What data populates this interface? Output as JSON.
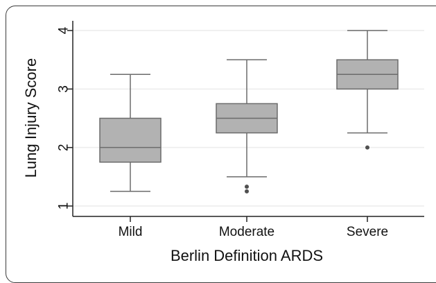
{
  "chart_data": {
    "type": "box",
    "xlabel": "Berlin Definition ARDS",
    "ylabel": "Lung Injury Score",
    "ylim": [
      0.95,
      4.2
    ],
    "yticks": [
      "1",
      "2",
      "3",
      "4"
    ],
    "categories": [
      "Mild",
      "Moderate",
      "Severe"
    ],
    "boxes": [
      {
        "category": "Mild",
        "whisker_low": 1.25,
        "q1": 1.75,
        "median": 2.0,
        "q3": 2.5,
        "whisker_high": 3.25,
        "outliers": []
      },
      {
        "category": "Moderate",
        "whisker_low": 1.5,
        "q1": 2.25,
        "median": 2.5,
        "q3": 2.75,
        "whisker_high": 3.5,
        "outliers": [
          1.33,
          1.25
        ]
      },
      {
        "category": "Severe",
        "whisker_low": 2.25,
        "q1": 3.0,
        "median": 3.25,
        "q3": 3.5,
        "whisker_high": 4.0,
        "outliers": [
          2.0
        ]
      }
    ],
    "grid": true,
    "colors": {
      "box_fill": "#b2b2b2",
      "box_stroke": "#6b6b6b",
      "grid": "#ececec",
      "axis": "#222222",
      "outlier": "#505050"
    }
  }
}
